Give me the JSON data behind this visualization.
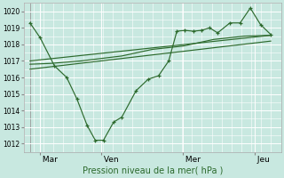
{
  "xlabel": "Pression niveau de la mer( hPa )",
  "background_color": "#c8e8e0",
  "line_color": "#2d6a2d",
  "grid_color": "#ffffff",
  "ylim": [
    1011.5,
    1020.5
  ],
  "yticks": [
    1012,
    1013,
    1014,
    1015,
    1016,
    1017,
    1018,
    1019,
    1020
  ],
  "xtick_labels": [
    " Mar",
    " Ven",
    " Mer",
    " Jeu"
  ],
  "xtick_positions": [
    0.5,
    3.5,
    7.5,
    11.0
  ],
  "vline_positions": [
    0.0,
    3.5,
    7.5,
    11.0
  ],
  "xlim": [
    -0.3,
    12.3
  ],
  "series1_x": [
    0.0,
    0.5,
    1.2,
    1.8,
    2.3,
    2.8,
    3.2,
    3.6,
    4.1,
    4.5,
    5.2,
    5.8,
    6.3,
    6.8,
    7.2,
    7.6,
    8.0,
    8.4,
    8.8,
    9.2,
    9.8,
    10.3,
    10.8,
    11.3,
    11.8
  ],
  "series1_y": [
    1019.3,
    1018.4,
    1016.7,
    1016.0,
    1014.7,
    1013.1,
    1012.2,
    1012.2,
    1013.3,
    1013.6,
    1015.2,
    1015.9,
    1016.1,
    1017.0,
    1018.8,
    1018.85,
    1018.8,
    1018.85,
    1019.0,
    1018.7,
    1019.3,
    1019.3,
    1020.2,
    1019.2,
    1018.6
  ],
  "series2_x": [
    0.0,
    1.0,
    2.5,
    4.5,
    6.0,
    7.5,
    9.0,
    10.5,
    11.8
  ],
  "series2_y": [
    1016.8,
    1016.85,
    1017.0,
    1017.3,
    1017.7,
    1017.9,
    1018.3,
    1018.5,
    1018.55
  ],
  "series3_x": [
    0.0,
    11.8
  ],
  "series3_y": [
    1016.5,
    1018.2
  ],
  "series4_x": [
    0.0,
    11.8
  ],
  "series4_y": [
    1017.0,
    1018.55
  ]
}
